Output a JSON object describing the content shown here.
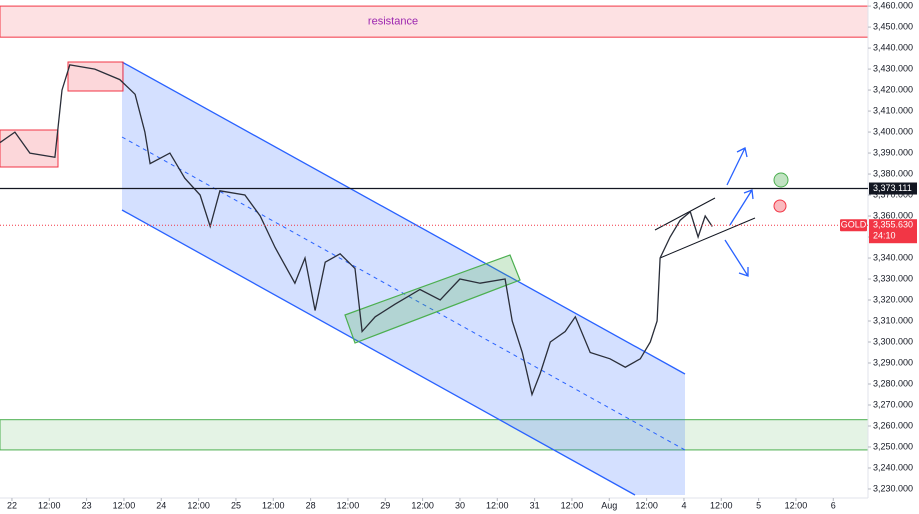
{
  "chart_data": {
    "type": "line",
    "color": "#2a2e39",
    "grid": false,
    "ylim": [
      3225.7,
      3462.9
    ],
    "yticks": [
      {
        "value": 3230,
        "label": "3,230.000"
      },
      {
        "value": 3240,
        "label": "3,240.000"
      },
      {
        "value": 3250,
        "label": "3,250.000"
      },
      {
        "value": 3260,
        "label": "3,260.000"
      },
      {
        "value": 3270,
        "label": "3,270.000"
      },
      {
        "value": 3280,
        "label": "3,280.000"
      },
      {
        "value": 3290,
        "label": "3,290.000"
      },
      {
        "value": 3300,
        "label": "3,300.000"
      },
      {
        "value": 3310,
        "label": "3,310.000"
      },
      {
        "value": 3320,
        "label": "3,320.000"
      },
      {
        "value": 3330,
        "label": "3,330.000"
      },
      {
        "value": 3340,
        "label": "3,340.000"
      },
      {
        "value": 3350,
        "label": "3,350.000"
      },
      {
        "value": 3360,
        "label": "3,360.000"
      },
      {
        "value": 3370,
        "label": "3,370.000"
      },
      {
        "value": 3380,
        "label": "3,380.000"
      },
      {
        "value": 3390,
        "label": "3,390.000"
      },
      {
        "value": 3400,
        "label": "3,400.000"
      },
      {
        "value": 3410,
        "label": "3,410.000"
      },
      {
        "value": 3420,
        "label": "3,420.000"
      },
      {
        "value": 3430,
        "label": "3,430.000"
      },
      {
        "value": 3440,
        "label": "3,440.000"
      },
      {
        "value": 3450,
        "label": "3,450.000"
      },
      {
        "value": 3460,
        "label": "3,460.000"
      }
    ],
    "xlim": [
      -0.32,
      22.93
    ],
    "xticks": [
      {
        "value": 0,
        "label": "22"
      },
      {
        "value": 1,
        "label": "12:00"
      },
      {
        "value": 2,
        "label": "23"
      },
      {
        "value": 3,
        "label": "12:00"
      },
      {
        "value": 4,
        "label": "24"
      },
      {
        "value": 5,
        "label": "12:00"
      },
      {
        "value": 6,
        "label": "25"
      },
      {
        "value": 7,
        "label": "12:00"
      },
      {
        "value": 8,
        "label": "28"
      },
      {
        "value": 9,
        "label": "12:00"
      },
      {
        "value": 10,
        "label": "29"
      },
      {
        "value": 11,
        "label": "12:00"
      },
      {
        "value": 12,
        "label": "30"
      },
      {
        "value": 13,
        "label": "12:00"
      },
      {
        "value": 14,
        "label": "31"
      },
      {
        "value": 15,
        "label": "12:00"
      },
      {
        "value": 16,
        "label": "Aug"
      },
      {
        "value": 17,
        "label": "12:00"
      },
      {
        "value": 18,
        "label": "4"
      },
      {
        "value": 19,
        "label": "12:00"
      },
      {
        "value": 20,
        "label": "5"
      },
      {
        "value": 21,
        "label": "12:00"
      },
      {
        "value": 22,
        "label": "6"
      }
    ],
    "x": [
      -0.32,
      0.08,
      0.48,
      1.15,
      1.34,
      1.55,
      2.22,
      2.89,
      3.3,
      3.56,
      3.7,
      4.23,
      4.63,
      5.04,
      5.31,
      5.57,
      6.24,
      6.65,
      7.05,
      7.58,
      7.85,
      8.12,
      8.39,
      8.79,
      9.19,
      9.38,
      9.73,
      10.26,
      10.93,
      11.47,
      12.0,
      12.54,
      13.21,
      13.4,
      13.67,
      13.93,
      14.15,
      14.42,
      14.82,
      15.09,
      15.49,
      16.02,
      16.43,
      16.83,
      17.1,
      17.28,
      17.36,
      17.63,
      17.9,
      18.17,
      18.38,
      18.57,
      18.76
    ],
    "values": [
      3395,
      3400,
      3390,
      3388,
      3420,
      3432,
      3430,
      3425,
      3418,
      3400,
      3385,
      3390,
      3378,
      3370,
      3355,
      3372,
      3370,
      3360,
      3345,
      3328,
      3340,
      3315,
      3338,
      3342,
      3335,
      3305,
      3312,
      3318,
      3325,
      3320,
      3330,
      3328,
      3330,
      3310,
      3295,
      3275,
      3285,
      3300,
      3305,
      3312,
      3295,
      3292,
      3288,
      3292,
      3300,
      3310,
      3340,
      3350,
      3358,
      3362,
      3350,
      3360,
      3355
    ],
    "zones": [
      {
        "label": "resistance",
        "range": [
          3445.2,
          3460
        ]
      },
      {
        "range": [
          3248.6,
          3263
        ]
      }
    ],
    "hline": {
      "value": 3373.111,
      "label": "3,373.111"
    },
    "last_price": {
      "symbol": "GOLD",
      "value": 3355.63,
      "label": "3,355.630",
      "countdown": "24:10"
    }
  }
}
